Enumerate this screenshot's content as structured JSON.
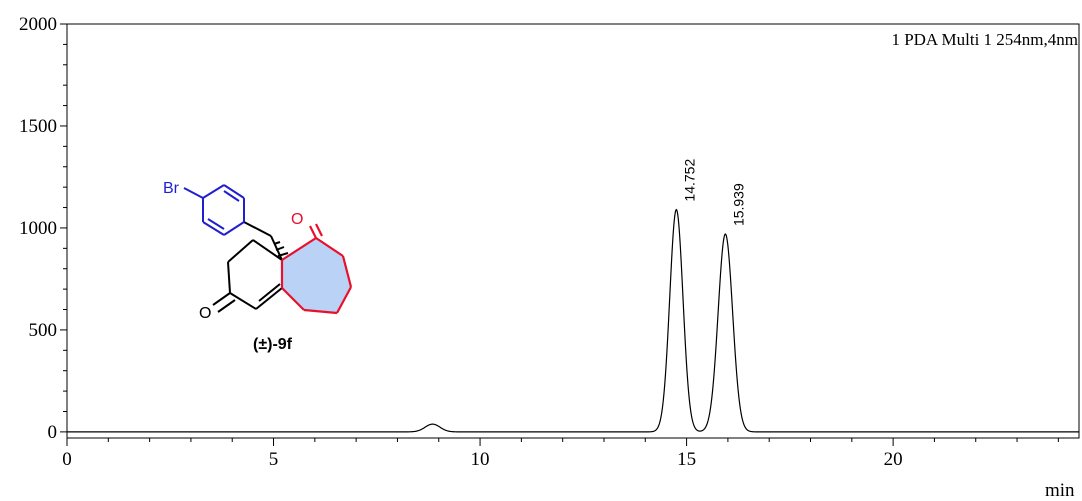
{
  "chart_data": {
    "type": "line",
    "legend": "1 PDA Multi 1 254nm,4nm",
    "x_unit_label": "min",
    "xlim": [
      0,
      24.5
    ],
    "ylim": [
      -30,
      2000
    ],
    "x_ticks": [
      "0",
      "5",
      "10",
      "15",
      "20"
    ],
    "y_ticks": [
      "0",
      "500",
      "1000",
      "1500",
      "2000"
    ],
    "grid": false,
    "series": [
      {
        "peaks": [
          {
            "rt": 8.85,
            "height": 38,
            "width": 0.18
          },
          {
            "rt": 14.752,
            "height": 1090,
            "width": 0.16
          },
          {
            "rt": 15.939,
            "height": 970,
            "width": 0.175
          }
        ],
        "baseline": 0
      }
    ],
    "peak_labels": [
      "14.752",
      "15.939"
    ]
  },
  "structure": {
    "bromo_label": "Br",
    "oxygen_label": "O",
    "compound_prefix": "(±)-",
    "compound_id": "9f"
  },
  "colors": {
    "blue": "#1f1fd0",
    "red": "#e8102a",
    "ring_fill": "#b9d2f5",
    "trace": "#000000"
  }
}
